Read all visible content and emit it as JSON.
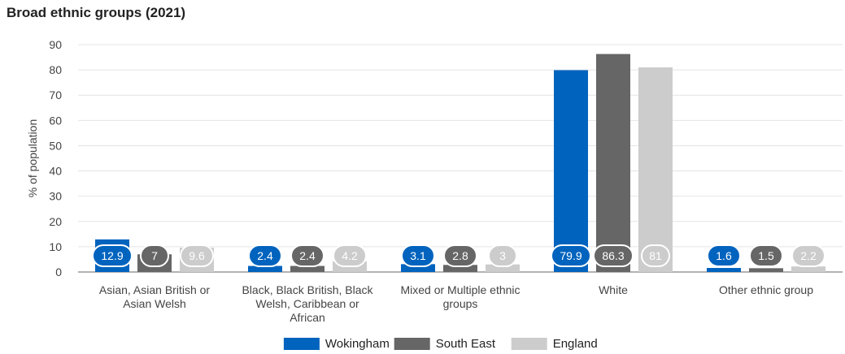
{
  "chart_data": {
    "type": "bar",
    "title": "Broad ethnic groups (2021)",
    "ylabel": "% of population",
    "xlabel": "",
    "ylim": [
      0,
      90
    ],
    "yticks": [
      0,
      10,
      20,
      30,
      40,
      50,
      60,
      70,
      80,
      90
    ],
    "grid": true,
    "legend_position": "bottom",
    "categories": [
      [
        "Asian, Asian British or",
        "Asian Welsh"
      ],
      [
        "Black, Black British, Black",
        "Welsh, Caribbean or",
        "African"
      ],
      [
        "Mixed or Multiple ethnic",
        "groups"
      ],
      [
        "White"
      ],
      [
        "Other ethnic group"
      ]
    ],
    "series": [
      {
        "name": "Wokingham",
        "color": "#0063be",
        "values": [
          12.9,
          2.4,
          3.1,
          79.9,
          1.6
        ]
      },
      {
        "name": "South East",
        "color": "#666666",
        "values": [
          7,
          2.4,
          2.8,
          86.3,
          1.5
        ]
      },
      {
        "name": "England",
        "color": "#cccccc",
        "values": [
          9.6,
          4.2,
          3,
          81,
          2.2
        ]
      }
    ]
  }
}
